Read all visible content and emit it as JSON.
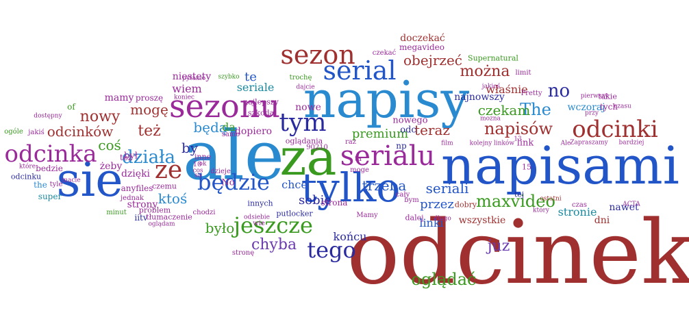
{
  "palette": {
    "red": "#a03030",
    "blue": "#2255c8",
    "lightblue": "#2a8ad0",
    "green": "#3a9a20",
    "purple": "#9a2a9a",
    "navy": "#2a2aa0",
    "teal": "#1a8aa0",
    "violet": "#6a3ab0"
  },
  "words": [
    {
      "text": "odcinek",
      "color": "red"
    },
    {
      "text": "napisami",
      "color": "blue"
    },
    {
      "text": "napisy",
      "color": "lightblue"
    },
    {
      "text": "ale",
      "color": "lightblue"
    },
    {
      "text": "za",
      "color": "green"
    },
    {
      "text": "sie",
      "color": "blue"
    },
    {
      "text": "tylko",
      "color": "blue"
    },
    {
      "text": "sezonu",
      "color": "purple"
    },
    {
      "text": "sezon",
      "color": "red"
    },
    {
      "text": "serial",
      "color": "blue"
    },
    {
      "text": "serialu",
      "color": "purple"
    },
    {
      "text": "odcinki",
      "color": "red"
    },
    {
      "text": "odcinka",
      "color": "purple"
    },
    {
      "text": "tym",
      "color": "navy"
    },
    {
      "text": "będzie",
      "color": "blue"
    },
    {
      "text": "jeszcze",
      "color": "green"
    },
    {
      "text": "tego",
      "color": "navy"
    },
    {
      "text": "ze",
      "color": "red"
    },
    {
      "text": "działa",
      "color": "lightblue"
    },
    {
      "text": "maxvideo",
      "color": "green"
    },
    {
      "text": "napisów",
      "color": "red"
    },
    {
      "text": "ogladac",
      "display": "oglądać",
      "color": "green"
    },
    {
      "text": "można",
      "color": "red"
    },
    {
      "text": "no",
      "color": "navy"
    },
    {
      "text": "obejrzeć",
      "color": "red"
    },
    {
      "text": "The",
      "color": "lightblue"
    },
    {
      "text": "chyba",
      "color": "violet"
    },
    {
      "text": "juz",
      "color": "violet"
    },
    {
      "text": "też",
      "color": "red"
    },
    {
      "text": "nowy",
      "color": "red"
    },
    {
      "text": "mogę",
      "color": "red"
    },
    {
      "text": "będą",
      "color": "lightblue"
    },
    {
      "text": "teraz",
      "color": "red"
    },
    {
      "text": "czekam",
      "color": "green"
    },
    {
      "text": "trzeba",
      "color": "blue"
    },
    {
      "text": "było",
      "color": "green"
    },
    {
      "text": "ktoś",
      "color": "lightblue"
    },
    {
      "text": "seriali",
      "color": "blue"
    },
    {
      "text": "odcinków",
      "color": "red"
    },
    {
      "text": "coś",
      "color": "green"
    },
    {
      "text": "by",
      "color": "navy"
    },
    {
      "text": "przez",
      "color": "blue"
    },
    {
      "text": "stronie",
      "color": "teal"
    },
    {
      "text": "sobie",
      "color": "navy"
    },
    {
      "text": "chce",
      "color": "blue"
    },
    {
      "text": "linki",
      "color": "blue"
    },
    {
      "text": "końcu",
      "color": "navy"
    },
    {
      "text": "premium",
      "color": "green"
    },
    {
      "text": "seriale",
      "color": "teal"
    },
    {
      "text": "wiem",
      "color": "purple"
    },
    {
      "text": "te",
      "color": "blue"
    },
    {
      "text": "doczekać",
      "color": "red"
    },
    {
      "text": "właśnie",
      "color": "red"
    },
    {
      "text": "najnowszy",
      "color": "navy"
    },
    {
      "text": "wczoraj",
      "color": "lightblue"
    },
    {
      "text": "niestety",
      "color": "purple"
    },
    {
      "text": "mamy",
      "color": "purple"
    },
    {
      "text": "da",
      "color": "green"
    },
    {
      "text": "dopiero",
      "color": "purple"
    },
    {
      "text": "nowe",
      "color": "purple"
    },
    {
      "text": "odc",
      "color": "navy"
    },
    {
      "text": "nowego",
      "color": "purple"
    },
    {
      "text": "No",
      "color": "purple"
    },
    {
      "text": "dni",
      "color": "red"
    },
    {
      "text": "nawet",
      "color": "navy"
    },
    {
      "text": "wszystkie",
      "color": "red"
    },
    {
      "text": "strony",
      "color": "purple"
    },
    {
      "text": "dzięki",
      "color": "purple"
    },
    {
      "text": "żeby",
      "color": "purple"
    },
    {
      "text": "anyfiles",
      "color": "purple"
    },
    {
      "text": "był",
      "color": "purple"
    },
    {
      "text": "megavideo",
      "color": "purple"
    },
    {
      "text": "Supernatural",
      "color": "green"
    },
    {
      "text": "link",
      "color": "purple"
    },
    {
      "text": "tej",
      "color": "navy"
    },
    {
      "text": "strona",
      "color": "purple"
    },
    {
      "text": "bedzie",
      "color": "purple"
    },
    {
      "text": "tez",
      "color": "purple"
    },
    {
      "text": "of",
      "color": "green"
    },
    {
      "text": "odcinku",
      "color": "navy"
    },
    {
      "text": "the",
      "color": "lightblue"
    },
    {
      "text": "super",
      "color": "teal"
    },
    {
      "text": "proszę",
      "color": "purple"
    },
    {
      "text": "problem",
      "color": "purple"
    },
    {
      "text": "iitv",
      "color": "navy"
    },
    {
      "text": "czemu",
      "color": "purple"
    },
    {
      "text": "oglądania",
      "color": "purple"
    },
    {
      "text": "szkoda",
      "color": "purple"
    },
    {
      "text": "najlepszy",
      "color": "purple"
    },
    {
      "text": "innych",
      "color": "navy"
    },
    {
      "text": "np",
      "color": "navy"
    },
    {
      "text": "putlocker",
      "color": "navy"
    },
    {
      "text": "dalej",
      "color": "purple"
    },
    {
      "text": "dobry",
      "color": "red"
    },
    {
      "text": "tych",
      "color": "purple"
    },
    {
      "text": "takie",
      "color": "purple"
    },
    {
      "text": "przy",
      "color": "purple"
    },
    {
      "text": "czas",
      "color": "purple"
    },
    {
      "text": "ostatni",
      "color": "red"
    },
    {
      "text": "pierwszy",
      "color": "purple"
    },
    {
      "text": "bardziej",
      "color": "purple"
    },
    {
      "text": "Zapraszamy",
      "color": "purple"
    },
    {
      "text": "ACTA",
      "color": "purple"
    },
    {
      "text": "kolejny",
      "color": "purple"
    },
    {
      "text": "linków",
      "color": "purple"
    },
    {
      "text": "film",
      "color": "purple"
    },
    {
      "text": "Ale",
      "color": "purple"
    },
    {
      "text": "który",
      "color": "purple"
    },
    {
      "text": "długo",
      "color": "purple"
    },
    {
      "text": "minut",
      "color": "green"
    },
    {
      "text": "jednak",
      "color": "purple"
    },
    {
      "text": "tłumaczenie",
      "color": "purple"
    },
    {
      "text": "oglądam",
      "color": "purple"
    },
    {
      "text": "chodzi",
      "color": "purple"
    },
    {
      "text": "dzieje",
      "color": "purple"
    },
    {
      "text": "samo",
      "color": "purple"
    },
    {
      "text": "ok",
      "color": "purple"
    },
    {
      "text": "inne",
      "color": "purple"
    },
    {
      "text": "10",
      "color": "purple"
    },
    {
      "text": "ta",
      "color": "purple"
    },
    {
      "text": "moge",
      "color": "purple"
    },
    {
      "text": "90210",
      "color": "purple"
    },
    {
      "text": "raz",
      "color": "purple"
    },
    {
      "text": "cały",
      "color": "purple"
    },
    {
      "text": "bym",
      "color": "purple"
    },
    {
      "text": "Mamy",
      "color": "purple"
    },
    {
      "text": "15",
      "color": "purple"
    },
    {
      "text": "13",
      "color": "purple"
    },
    {
      "text": "Pretty",
      "color": "purple"
    },
    {
      "text": "jakieś",
      "color": "purple"
    },
    {
      "text": "limit",
      "color": "purple"
    },
    {
      "text": "mozna",
      "color": "purple"
    },
    {
      "text": "czekać",
      "color": "purple"
    },
    {
      "text": "dajcie",
      "color": "purple"
    },
    {
      "text": "trochę",
      "color": "green"
    },
    {
      "text": "szybko",
      "color": "green"
    },
    {
      "text": "pytanie",
      "color": "purple"
    },
    {
      "text": "koniec",
      "color": "purple"
    },
    {
      "text": "dostępny",
      "color": "purple"
    },
    {
      "text": "ogóle",
      "color": "green"
    },
    {
      "text": "jakiś",
      "color": "purple"
    },
    {
      "text": "które",
      "color": "purple"
    },
    {
      "text": "macie",
      "color": "purple"
    },
    {
      "text": "tyle",
      "color": "purple"
    },
    {
      "text": "wie",
      "color": "purple"
    },
    {
      "text": "odsiebie",
      "color": "purple"
    },
    {
      "text": "stronę",
      "color": "purple"
    },
    {
      "text": "cos",
      "color": "purple"
    },
    {
      "text": "sa",
      "color": "purple"
    },
    {
      "text": "czasu",
      "color": "purple"
    }
  ]
}
